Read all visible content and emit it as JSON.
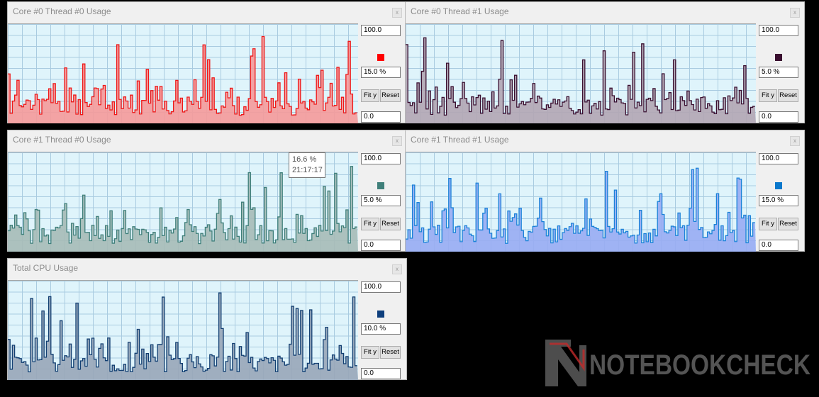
{
  "panels": [
    {
      "title": "Core #0 Thread #0 Usage",
      "max": "100.0",
      "current": "15.0 %",
      "min": "0.0",
      "fit_label": "Fit y",
      "reset_label": "Reset",
      "close_label": "x",
      "color": "#ff0000",
      "fill": "#f59a9a",
      "stroke": "#ee1818",
      "seed": 11
    },
    {
      "title": "Core #0 Thread #1 Usage",
      "max": "100.0",
      "current": "5.0 %",
      "min": "0.0",
      "fit_label": "Fit y",
      "reset_label": "Reset",
      "close_label": "x",
      "color": "#3a0f30",
      "fill": "#b3a6b4",
      "stroke": "#3a0f30",
      "seed": 23
    },
    {
      "title": "Core #1 Thread #0 Usage",
      "max": "100.0",
      "current": "5.0 %",
      "min": "0.0",
      "fit_label": "Fit y",
      "reset_label": "Reset",
      "close_label": "x",
      "color": "#3f7f7a",
      "fill": "#a6bbb7",
      "stroke": "#3f7f7a",
      "seed": 37
    },
    {
      "title": "Core #1 Thread #1 Usage",
      "max": "100.0",
      "current": "15.0 %",
      "min": "0.0",
      "fit_label": "Fit y",
      "reset_label": "Reset",
      "close_label": "x",
      "color": "#0a78cc",
      "fill": "#98acf3",
      "stroke": "#1a82d8",
      "seed": 51
    },
    {
      "title": "Total CPU Usage",
      "max": "100.0",
      "current": "10.0 %",
      "min": "0.0",
      "fit_label": "Fit y",
      "reset_label": "Reset",
      "close_label": "x",
      "color": "#0e3f7d",
      "fill": "#98a6b8",
      "stroke": "#123f72",
      "seed": 67
    }
  ],
  "tooltip": {
    "value": "16.6 %",
    "time": "21:17:17"
  },
  "watermark": {
    "text": "NOTEBOOKCHECK"
  }
}
